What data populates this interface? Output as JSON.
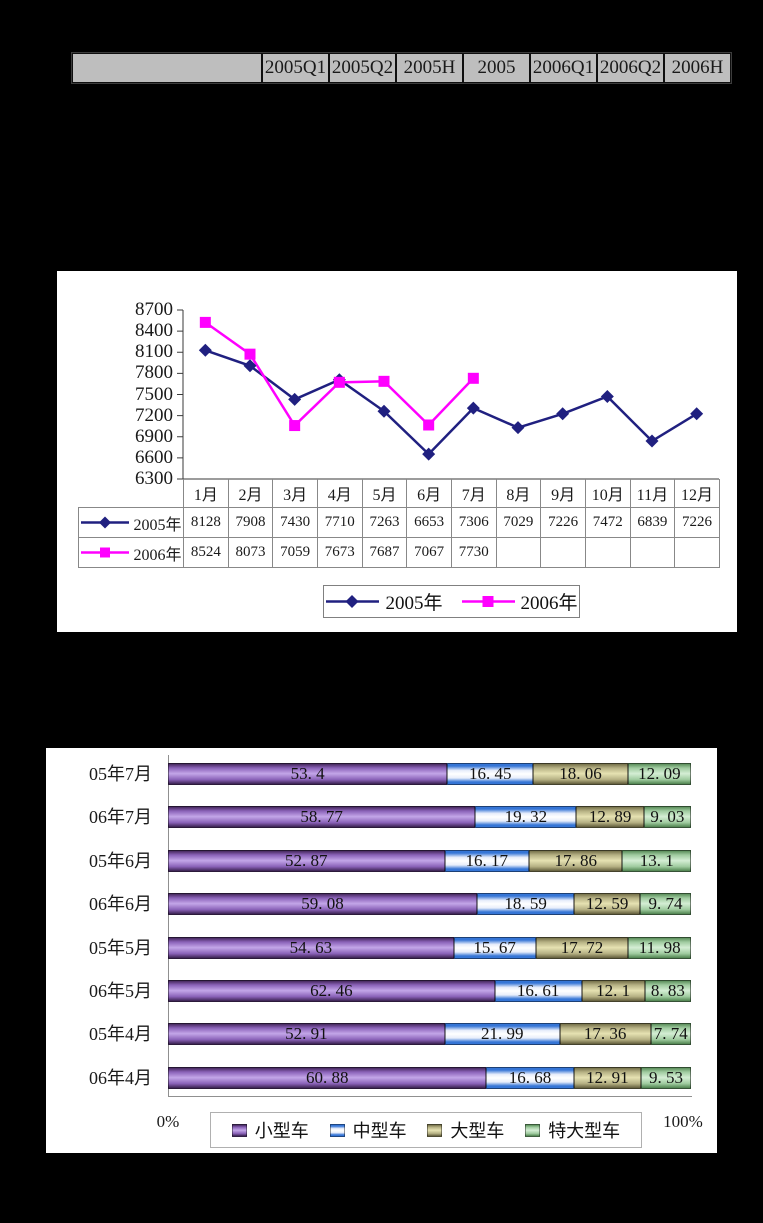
{
  "page": {
    "background": "#000000",
    "panel_background": "#ffffff"
  },
  "top_table": {
    "corner": "",
    "headers": [
      "2005Q1",
      "2005Q2",
      "2005H",
      "2005",
      "2006Q1",
      "2006Q2",
      "2006H"
    ],
    "cell_background": "#bebebe"
  },
  "chart_data": [
    {
      "id": "monthly-trend",
      "type": "line",
      "title": "",
      "categories": [
        "1月",
        "2月",
        "3月",
        "4月",
        "5月",
        "6月",
        "7月",
        "8月",
        "9月",
        "10月",
        "11月",
        "12月"
      ],
      "y_ticks": [
        8700,
        8400,
        8100,
        7800,
        7500,
        7200,
        6900,
        6600,
        6300
      ],
      "ylim": [
        6300,
        8700
      ],
      "grid": false,
      "data_table_shown": true,
      "legend_position": "bottom",
      "series": [
        {
          "name": "2005年",
          "color": "#202080",
          "marker": "diamond",
          "values": [
            8128,
            7908,
            7430,
            7710,
            7263,
            6653,
            7306,
            7029,
            7226,
            7472,
            6839,
            7226
          ]
        },
        {
          "name": "2006年",
          "color": "#ff00ff",
          "marker": "square",
          "values": [
            8524,
            8073,
            7059,
            7673,
            7687,
            7067,
            7730
          ]
        }
      ]
    },
    {
      "id": "vehicle-size-mix",
      "type": "bar",
      "orientation": "horizontal",
      "stacked_percent": true,
      "order": "top-to-bottom",
      "categories": [
        "05年7月",
        "06年7月",
        "05年6月",
        "06年6月",
        "05年5月",
        "06年5月",
        "05年4月",
        "06年4月"
      ],
      "xlabel_left": "0%",
      "xlabel_right": "100%",
      "xlim": [
        0,
        100
      ],
      "legend_position": "bottom",
      "series": [
        {
          "name": "小型车",
          "color": "#9966cc",
          "values": [
            53.4,
            58.77,
            52.87,
            59.08,
            54.63,
            62.46,
            52.91,
            60.88
          ],
          "labels": [
            "53. 4",
            "58. 77",
            "52. 87",
            "59. 08",
            "54. 63",
            "62. 46",
            "52. 91",
            "60. 88"
          ]
        },
        {
          "name": "中型车",
          "color": "#6699ff",
          "values": [
            16.45,
            19.32,
            16.17,
            18.59,
            15.67,
            16.61,
            21.99,
            16.68
          ],
          "labels": [
            "16. 45",
            "19. 32",
            "16. 17",
            "18. 59",
            "15. 67",
            "16. 61",
            "21. 99",
            "16. 68"
          ]
        },
        {
          "name": "大型车",
          "color": "#cccc99",
          "values": [
            18.06,
            12.89,
            17.86,
            12.59,
            17.72,
            12.1,
            17.36,
            12.91
          ],
          "labels": [
            "18. 06",
            "12. 89",
            "17. 86",
            "12. 59",
            "17. 72",
            "12. 1",
            "17. 36",
            "12. 91"
          ]
        },
        {
          "name": "特大型车",
          "color": "#99cc99",
          "values": [
            12.09,
            9.03,
            13.1,
            9.74,
            11.98,
            8.83,
            7.74,
            9.53
          ],
          "labels": [
            "12. 09",
            "9. 03",
            "13. 1",
            "9. 74",
            "11. 98",
            "8. 83",
            "7. 74",
            "9. 53"
          ]
        }
      ]
    }
  ]
}
